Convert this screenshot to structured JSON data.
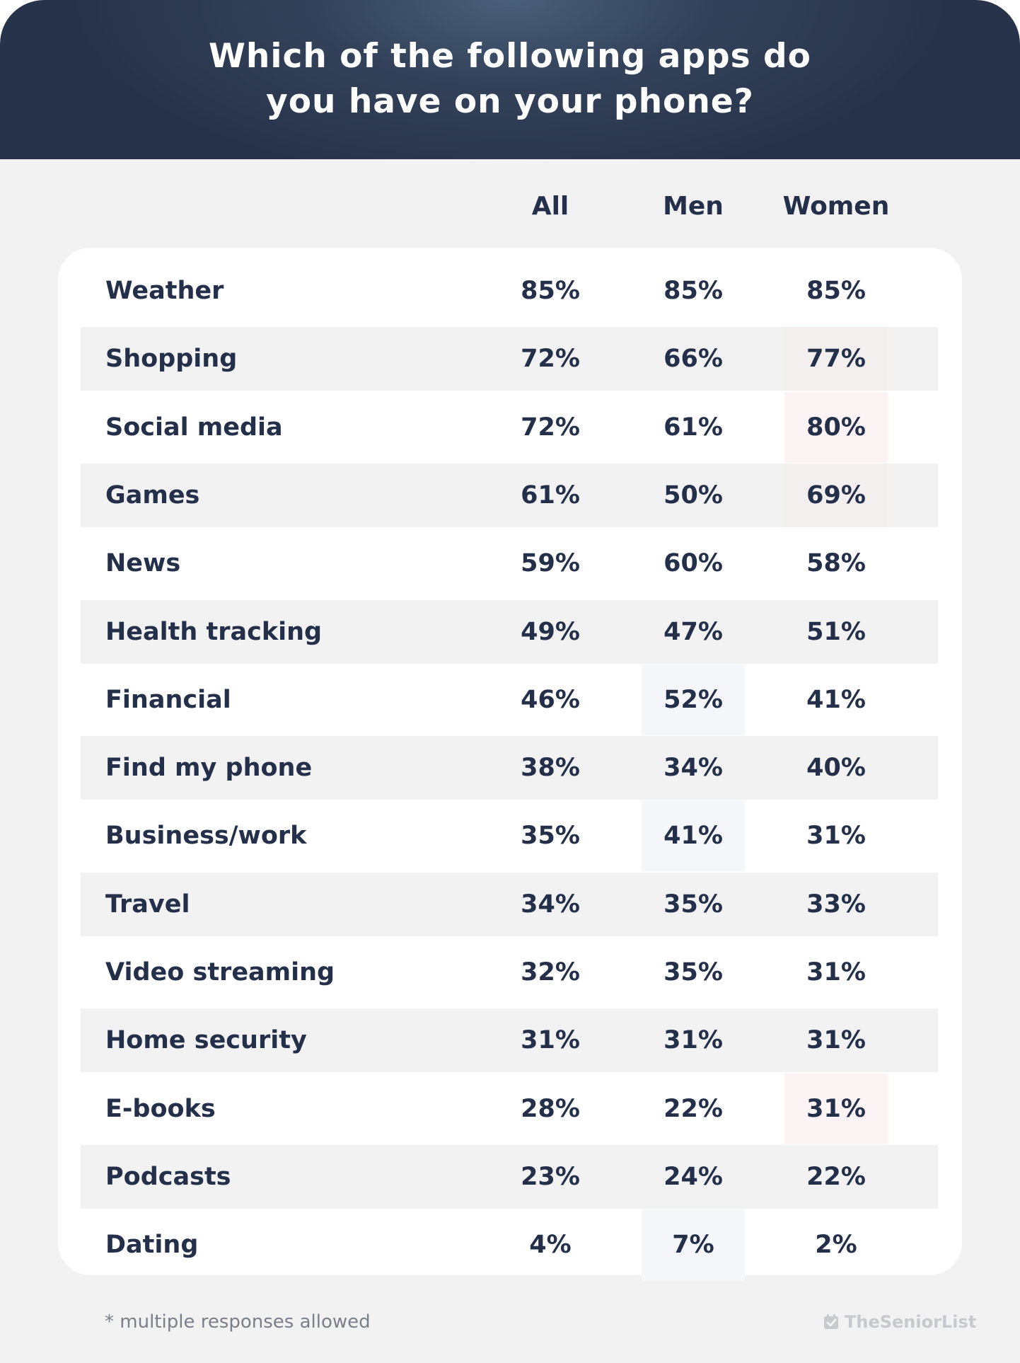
{
  "title_line1": "Which of the following apps do",
  "title_line2": "you have on your phone?",
  "columns": [
    "All",
    "Men",
    "Women"
  ],
  "footnote": "* multiple responses allowed",
  "brand": "TheSeniorList",
  "colors": {
    "header_dark": "#27334a",
    "text_navy": "#24304a",
    "background": "#f2f2f3",
    "highlight_men": "#f4f6f9",
    "highlight_women": "#fcf4f4"
  },
  "chart_data": {
    "type": "table",
    "title": "Which of the following apps do you have on your phone?",
    "columns": [
      "All",
      "Men",
      "Women"
    ],
    "rows": [
      {
        "label": "Weather",
        "values": [
          "85%",
          "85%",
          "85%"
        ],
        "highlight": ""
      },
      {
        "label": "Shopping",
        "values": [
          "72%",
          "66%",
          "77%"
        ],
        "highlight": "Women"
      },
      {
        "label": "Social media",
        "values": [
          "72%",
          "61%",
          "80%"
        ],
        "highlight": "Women"
      },
      {
        "label": "Games",
        "values": [
          "61%",
          "50%",
          "69%"
        ],
        "highlight": "Women"
      },
      {
        "label": "News",
        "values": [
          "59%",
          "60%",
          "58%"
        ],
        "highlight": ""
      },
      {
        "label": "Health tracking",
        "values": [
          "49%",
          "47%",
          "51%"
        ],
        "highlight": ""
      },
      {
        "label": "Financial",
        "values": [
          "46%",
          "52%",
          "41%"
        ],
        "highlight": "Men"
      },
      {
        "label": "Find my phone",
        "values": [
          "38%",
          "34%",
          "40%"
        ],
        "highlight": ""
      },
      {
        "label": "Business/work",
        "values": [
          "35%",
          "41%",
          "31%"
        ],
        "highlight": "Men"
      },
      {
        "label": "Travel",
        "values": [
          "34%",
          "35%",
          "33%"
        ],
        "highlight": ""
      },
      {
        "label": "Video streaming",
        "values": [
          "32%",
          "35%",
          "31%"
        ],
        "highlight": ""
      },
      {
        "label": "Home security",
        "values": [
          "31%",
          "31%",
          "31%"
        ],
        "highlight": ""
      },
      {
        "label": "E-books",
        "values": [
          "28%",
          "22%",
          "31%"
        ],
        "highlight": "Women"
      },
      {
        "label": "Podcasts",
        "values": [
          "23%",
          "24%",
          "22%"
        ],
        "highlight": ""
      },
      {
        "label": "Dating",
        "values": [
          "4%",
          "7%",
          "2%"
        ],
        "highlight": "Men"
      }
    ]
  }
}
